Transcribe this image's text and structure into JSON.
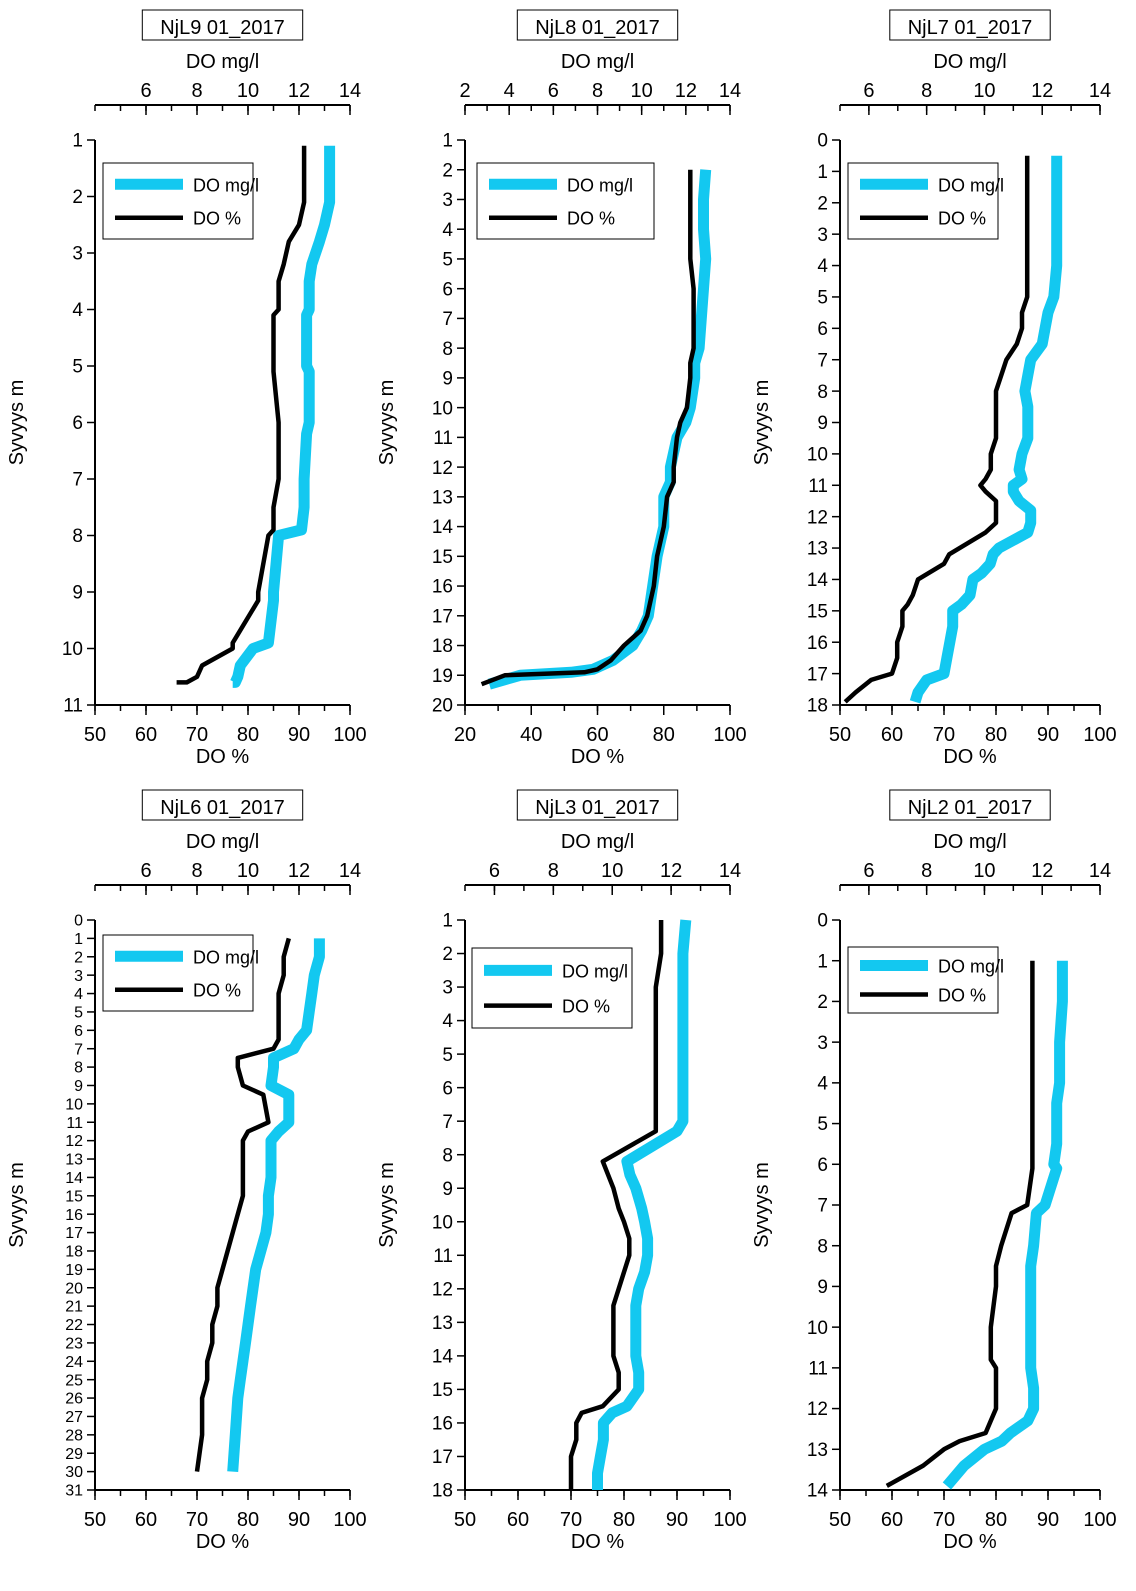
{
  "figure": {
    "colors": {
      "mgl": "#13C8F0",
      "pct": "#000000"
    }
  },
  "chart_data": [
    {
      "type": "line",
      "title": "NjL9 01_2017",
      "ylabel": "Syvyys m",
      "xlabel_bottom": "DO %",
      "xlabel_top": "DO mg/l",
      "ylim": [
        11,
        1
      ],
      "yticks": [
        1,
        2,
        3,
        4,
        5,
        6,
        7,
        8,
        9,
        10,
        11
      ],
      "xlim_bottom": [
        50,
        100
      ],
      "xticks_bottom": [
        50,
        60,
        70,
        80,
        90,
        100
      ],
      "xlim_top": [
        4,
        14
      ],
      "xticks_top": [
        6,
        8,
        10,
        12,
        14
      ],
      "legend": [
        "DO mg/l",
        "DO %"
      ],
      "series": [
        {
          "name": "DO mg/l",
          "axis": "top",
          "x": [
            13.2,
            13.2,
            13.2,
            13.0,
            12.8,
            12.5,
            12.4,
            12.4,
            12.3,
            12.3,
            12.4,
            12.4,
            12.3,
            12.2,
            12.2,
            12.1,
            11.2,
            11.0,
            11.0,
            10.8,
            10.2,
            9.7,
            9.6,
            9.5,
            9.4
          ],
          "y": [
            1.1,
            1.5,
            2.1,
            2.5,
            2.8,
            3.2,
            3.5,
            4.0,
            4.1,
            5.0,
            5.1,
            6.0,
            6.2,
            7.0,
            7.5,
            7.9,
            8.0,
            9.0,
            9.15,
            9.9,
            10.0,
            10.3,
            10.5,
            10.6,
            10.6
          ]
        },
        {
          "name": "DO %",
          "axis": "bottom",
          "x": [
            91,
            91,
            91,
            90,
            88,
            87,
            86,
            86,
            85,
            85,
            85,
            86,
            86,
            86,
            85,
            85,
            84,
            82,
            82,
            77,
            77,
            71,
            70,
            68,
            66
          ],
          "y": [
            1.1,
            1.5,
            2.1,
            2.5,
            2.8,
            3.2,
            3.5,
            4.0,
            4.1,
            5.0,
            5.1,
            6.0,
            6.2,
            7.0,
            7.5,
            7.9,
            8.0,
            9.0,
            9.15,
            9.9,
            10.0,
            10.3,
            10.5,
            10.6,
            10.6
          ]
        }
      ]
    },
    {
      "type": "line",
      "title": "NjL8 01_2017",
      "ylabel": "Syvyys m",
      "xlabel_bottom": "DO %",
      "xlabel_top": "DO mg/l",
      "ylim": [
        20,
        1
      ],
      "yticks": [
        1,
        2,
        3,
        4,
        5,
        6,
        7,
        8,
        9,
        10,
        11,
        12,
        13,
        14,
        15,
        16,
        17,
        18,
        19,
        20
      ],
      "xlim_bottom": [
        20,
        100
      ],
      "xticks_bottom": [
        20,
        40,
        60,
        80,
        100
      ],
      "xlim_top": [
        2,
        14
      ],
      "xticks_top": [
        2,
        4,
        6,
        8,
        10,
        12,
        14
      ],
      "legend": [
        "DO mg/l",
        "DO %"
      ],
      "series": [
        {
          "name": "DO mg/l",
          "axis": "top",
          "x": [
            12.9,
            12.8,
            12.8,
            12.9,
            12.8,
            12.7,
            12.6,
            12.4,
            12.4,
            12.2,
            12.0,
            11.6,
            11.3,
            11.3,
            11.0,
            11.0,
            10.7,
            10.5,
            10.4,
            10.3,
            10.0,
            9.6,
            8.7,
            7.8,
            6.8,
            4.5,
            3.1
          ],
          "y": [
            2,
            3,
            4,
            5,
            6,
            7,
            8,
            8.5,
            9,
            10,
            10.5,
            11,
            12,
            12.5,
            13,
            14,
            15,
            16,
            16.5,
            17,
            17.5,
            18,
            18.5,
            18.8,
            18.9,
            19.0,
            19.3
          ]
        },
        {
          "name": "DO %",
          "axis": "bottom",
          "x": [
            88,
            88,
            88,
            88,
            89,
            89,
            89,
            88,
            88,
            87,
            85,
            84,
            83,
            83,
            81,
            80,
            78,
            77,
            76,
            75,
            73,
            68,
            64,
            60,
            56,
            32,
            25
          ],
          "y": [
            2,
            3,
            4,
            5,
            6,
            7,
            8,
            8.5,
            9,
            10,
            10.5,
            11,
            12,
            12.5,
            13,
            14,
            15,
            16,
            16.5,
            17,
            17.5,
            18,
            18.5,
            18.8,
            18.9,
            19.0,
            19.3
          ]
        }
      ]
    },
    {
      "type": "line",
      "title": "NjL7 01_2017",
      "ylabel": "Syvyys m",
      "xlabel_bottom": "DO %",
      "xlabel_top": "DO mg/l",
      "ylim": [
        18,
        0
      ],
      "yticks": [
        0,
        1,
        2,
        3,
        4,
        5,
        6,
        7,
        8,
        9,
        10,
        11,
        12,
        13,
        14,
        15,
        16,
        17,
        18
      ],
      "xlim_bottom": [
        50,
        100
      ],
      "xticks_bottom": [
        50,
        60,
        70,
        80,
        90,
        100
      ],
      "xlim_top": [
        5,
        14
      ],
      "xticks_top": [
        6,
        8,
        10,
        12,
        14
      ],
      "legend": [
        "DO mg/l",
        "DO %"
      ],
      "series": [
        {
          "name": "DO mg/l",
          "axis": "top",
          "x": [
            12.5,
            12.5,
            12.5,
            12.5,
            12.5,
            12.4,
            12.2,
            12.1,
            12.0,
            11.6,
            11.5,
            11.4,
            11.5,
            11.5,
            11.5,
            11.3,
            11.2,
            11.3,
            11.0,
            11.0,
            11.2,
            11.6,
            11.6,
            11.5,
            10.5,
            10.3,
            10.2,
            9.9,
            9.6,
            9.5,
            9.2,
            8.9,
            8.9,
            8.8,
            8.7,
            8.6,
            8.0,
            7.7,
            7.6
          ],
          "y": [
            0.5,
            1,
            2,
            3,
            4,
            5,
            5.5,
            6,
            6.5,
            7,
            7.5,
            8,
            8.5,
            9,
            9.5,
            10,
            10.5,
            10.8,
            11,
            11.2,
            11.5,
            11.8,
            12.2,
            12.5,
            13,
            13.2,
            13.5,
            13.8,
            14,
            14.5,
            14.8,
            15,
            15.5,
            16,
            16.5,
            17,
            17.2,
            17.6,
            17.9
          ]
        },
        {
          "name": "DO %",
          "axis": "bottom",
          "x": [
            86,
            86,
            86,
            86,
            86,
            86,
            85,
            85,
            84,
            82,
            81,
            80,
            80,
            80,
            80,
            79,
            79,
            78,
            77,
            78,
            80,
            80,
            80,
            78,
            73,
            71,
            70,
            67,
            65,
            64,
            63,
            62,
            62,
            61,
            61,
            60,
            56,
            53,
            51
          ],
          "y": [
            0.5,
            1,
            2,
            3,
            4,
            5,
            5.5,
            6,
            6.5,
            7,
            7.5,
            8,
            8.5,
            9,
            9.5,
            10,
            10.5,
            10.8,
            11,
            11.2,
            11.5,
            11.8,
            12.2,
            12.5,
            13,
            13.2,
            13.5,
            13.8,
            14,
            14.5,
            14.8,
            15,
            15.5,
            16,
            16.5,
            17,
            17.2,
            17.6,
            17.9
          ]
        }
      ]
    },
    {
      "type": "line",
      "title": "NjL6 01_2017",
      "ylabel": "Syvyys m",
      "xlabel_bottom": "DO %",
      "xlabel_top": "DO mg/l",
      "ylim": [
        31,
        0
      ],
      "yticks": [
        0,
        1,
        2,
        3,
        4,
        5,
        6,
        7,
        8,
        9,
        10,
        11,
        12,
        13,
        14,
        15,
        16,
        17,
        18,
        19,
        20,
        21,
        22,
        23,
        24,
        25,
        26,
        27,
        28,
        29,
        30,
        31
      ],
      "xlim_bottom": [
        50,
        100
      ],
      "xticks_bottom": [
        50,
        60,
        70,
        80,
        90,
        100
      ],
      "xlim_top": [
        4,
        14
      ],
      "xticks_top": [
        6,
        8,
        10,
        12,
        14
      ],
      "legend": [
        "DO mg/l",
        "DO %"
      ],
      "series": [
        {
          "name": "DO mg/l",
          "axis": "top",
          "x": [
            12.8,
            12.8,
            12.6,
            12.5,
            12.4,
            12.3,
            12.0,
            11.8,
            11.0,
            11.0,
            10.9,
            11.6,
            11.6,
            11.2,
            10.9,
            10.9,
            10.9,
            10.8,
            10.8,
            10.7,
            10.5,
            10.3,
            10.2,
            10.1,
            10.0,
            9.9,
            9.8,
            9.7,
            9.6,
            9.5,
            9.4
          ],
          "y": [
            1,
            2,
            3,
            4,
            5,
            6,
            6.5,
            7,
            7.5,
            8,
            9,
            9.5,
            11,
            11.5,
            12,
            13,
            14,
            15,
            16,
            17,
            18,
            19,
            20,
            21,
            22,
            23,
            24,
            25,
            26,
            28,
            30
          ]
        },
        {
          "name": "DO %",
          "axis": "bottom",
          "x": [
            88,
            87,
            87,
            86,
            86,
            86,
            86,
            85,
            78,
            78,
            79,
            83,
            84,
            80,
            79,
            79,
            79,
            79,
            78,
            77,
            76,
            75,
            74,
            74,
            73,
            73,
            72,
            72,
            71,
            71,
            70
          ],
          "y": [
            1,
            2,
            3,
            4,
            5,
            6,
            6.5,
            7,
            7.5,
            8,
            9,
            9.5,
            11,
            11.5,
            12,
            13,
            14,
            15,
            16,
            17,
            18,
            19,
            20,
            21,
            22,
            23,
            24,
            25,
            26,
            28,
            30
          ]
        }
      ]
    },
    {
      "type": "line",
      "title": "NjL3 01_2017",
      "ylabel": "Syvyys m",
      "xlabel_bottom": "DO %",
      "xlabel_top": "DO mg/l",
      "ylim": [
        18,
        1
      ],
      "yticks": [
        1,
        2,
        3,
        4,
        5,
        6,
        7,
        8,
        9,
        10,
        11,
        12,
        13,
        14,
        15,
        16,
        17,
        18
      ],
      "xlim_bottom": [
        50,
        100
      ],
      "xticks_bottom": [
        50,
        60,
        70,
        80,
        90,
        100
      ],
      "xlim_top": [
        5,
        14
      ],
      "xticks_top": [
        6,
        8,
        10,
        12,
        14
      ],
      "legend": [
        "DO mg/l",
        "DO %"
      ],
      "series": [
        {
          "name": "DO mg/l",
          "axis": "top",
          "x": [
            12.5,
            12.4,
            12.4,
            12.4,
            12.4,
            12.4,
            12.4,
            12.2,
            10.5,
            10.6,
            10.8,
            11.0,
            11.1,
            11.2,
            11.2,
            11.1,
            10.9,
            10.8,
            10.8,
            10.8,
            10.9,
            10.9,
            10.5,
            10.0,
            9.7,
            9.7,
            9.6,
            9.5,
            9.5
          ],
          "y": [
            1,
            2,
            3,
            4,
            5,
            6,
            7,
            7.3,
            8.2,
            8.6,
            9.0,
            9.6,
            10,
            10.5,
            11,
            11.5,
            12,
            12.5,
            13,
            14,
            14.5,
            15,
            15.5,
            15.7,
            16,
            16.5,
            17,
            17.5,
            18
          ]
        },
        {
          "name": "DO %",
          "axis": "bottom",
          "x": [
            87,
            87,
            86,
            86,
            86,
            86,
            86,
            86,
            76,
            77,
            78,
            79,
            80,
            81,
            81,
            80,
            79,
            78,
            78,
            78,
            79,
            79,
            76,
            72,
            71,
            71,
            70,
            70,
            70
          ],
          "y": [
            1,
            2,
            3,
            4,
            5,
            6,
            7,
            7.3,
            8.2,
            8.6,
            9.0,
            9.6,
            10,
            10.5,
            11,
            11.5,
            12,
            12.5,
            13,
            14,
            14.5,
            15,
            15.5,
            15.7,
            16,
            16.5,
            17,
            17.5,
            18
          ]
        }
      ]
    },
    {
      "type": "line",
      "title": "NjL2 01_2017",
      "ylabel": "Syvyys m",
      "xlabel_bottom": "DO %",
      "xlabel_top": "DO mg/l",
      "ylim": [
        14,
        0
      ],
      "yticks": [
        0,
        1,
        2,
        3,
        4,
        5,
        6,
        7,
        8,
        9,
        10,
        11,
        12,
        13,
        14
      ],
      "xlim_bottom": [
        50,
        100
      ],
      "xticks_bottom": [
        50,
        60,
        70,
        80,
        90,
        100
      ],
      "xlim_top": [
        5,
        14
      ],
      "xticks_top": [
        6,
        8,
        10,
        12,
        14
      ],
      "legend": [
        "DO mg/l",
        "DO %"
      ],
      "series": [
        {
          "name": "DO mg/l",
          "axis": "top",
          "x": [
            12.7,
            12.7,
            12.6,
            12.6,
            12.5,
            12.5,
            12.5,
            12.4,
            12.5,
            12.1,
            11.8,
            11.7,
            11.6,
            11.6,
            11.6,
            11.6,
            11.6,
            11.7,
            11.7,
            11.5,
            10.9,
            10.6,
            10.0,
            9.3,
            8.7
          ],
          "y": [
            1,
            2,
            3,
            4,
            4.5,
            5,
            5.5,
            6,
            6.1,
            7,
            7.2,
            8,
            8.5,
            9,
            10,
            10.8,
            11,
            11.5,
            12,
            12.3,
            12.6,
            12.8,
            13,
            13.4,
            13.9
          ]
        },
        {
          "name": "DO %",
          "axis": "bottom",
          "x": [
            87,
            87,
            87,
            87,
            87,
            87,
            87,
            87,
            87,
            86,
            83,
            81,
            80,
            80,
            79,
            79,
            80,
            80,
            80,
            79,
            78,
            73,
            70,
            66,
            59
          ],
          "y": [
            1,
            2,
            3,
            4,
            4.5,
            5,
            5.5,
            6,
            6.1,
            7,
            7.2,
            8,
            8.5,
            9,
            10,
            10.8,
            11,
            11.5,
            12,
            12.3,
            12.6,
            12.8,
            13,
            13.4,
            13.9
          ]
        }
      ]
    }
  ]
}
